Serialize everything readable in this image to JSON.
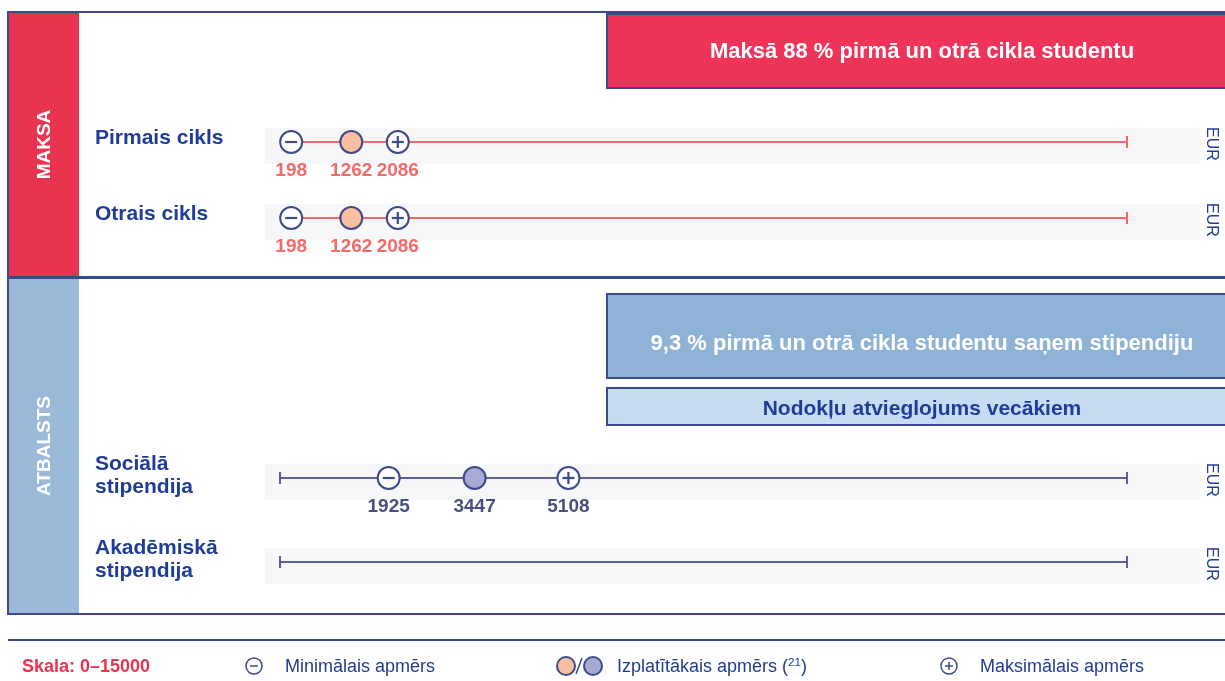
{
  "chart_data": [
    {
      "type": "other",
      "title": "MAKSA",
      "xlabel": "EUR",
      "categories": [
        "Pirmais cikls",
        "Otrais cikls"
      ],
      "data_labels": true,
      "legend": false,
      "annotations": [
        "Maksā 88 % pirmā un otrā cikla studentu"
      ],
      "series": [
        {
          "color": "#3d4a8a",
          "values": [
            198,
            198
          ]
        },
        {
          "color": "#f8bfa0",
          "values": [
            1262,
            1262
          ]
        },
        {
          "color": "#3d4a8a",
          "values": [
            2086,
            2086
          ]
        }
      ]
    },
    {
      "type": "other",
      "title": "ATBALSTS",
      "xlabel": "EUR",
      "categories": [
        "Sociālā stipendija",
        "Akadēmiskā stipendija"
      ],
      "data_labels": true,
      "legend": "bottom",
      "annotations": [
        "9,3 % pirmā un otrā cikla studentu saņem stipendiju",
        "Nodokļu atvieglojums vecākiem",
        "Skala: 0–15000"
      ],
      "series": [
        {
          "name": "Minimālais apmērs",
          "color": "#3d4a8a",
          "values": [
            1925,
            null
          ]
        },
        {
          "name": "Izplatītākais apmērs ($^{21}$)",
          "color": "#a9aad3",
          "values": [
            3447,
            null
          ]
        },
        {
          "name": "Maksimālais apmērs",
          "color": "#3d4a8a",
          "values": [
            5108,
            null
          ]
        }
      ]
    }
  ]
}
